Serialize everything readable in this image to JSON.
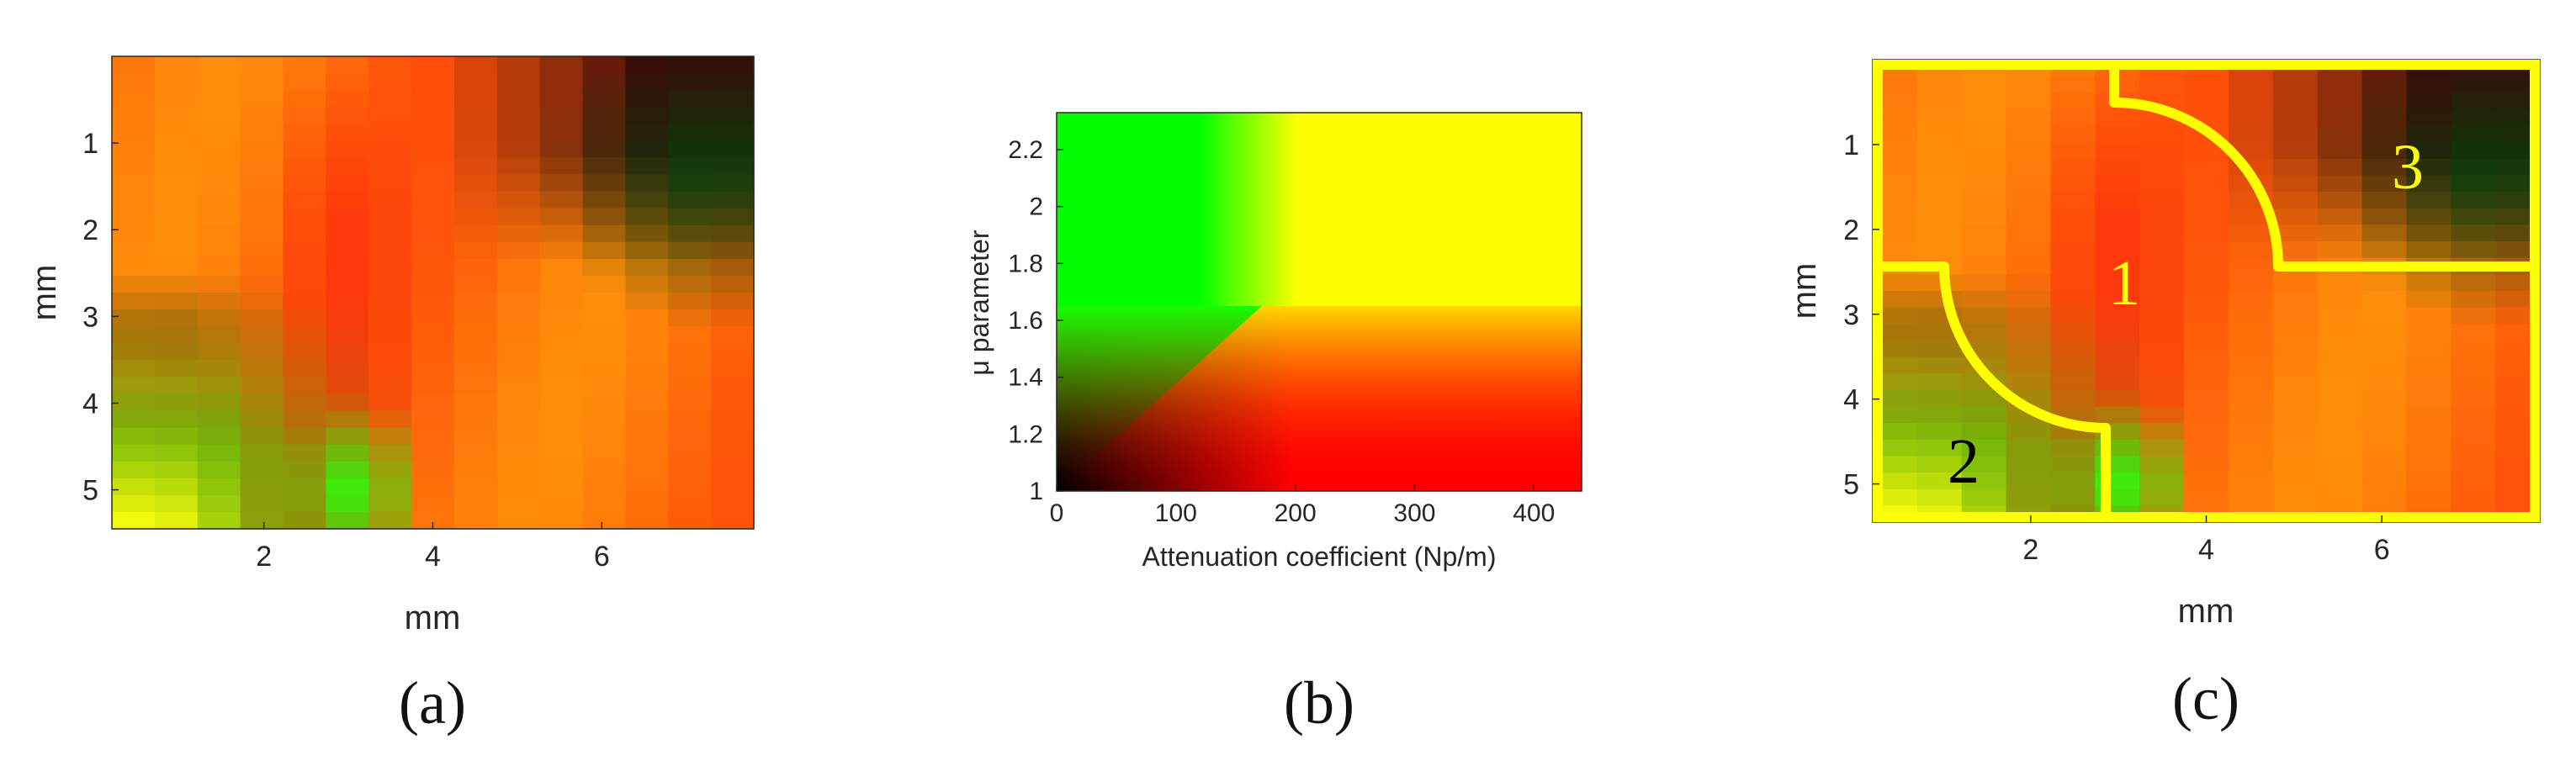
{
  "chart_data": [
    {
      "type": "heatmap",
      "panel_label": "(a)",
      "xlabel": "mm",
      "ylabel": "mm",
      "xlim": [
        0.2,
        7.8
      ],
      "ylim": [
        0,
        5.45
      ],
      "y_reversed": true,
      "xticks": [
        2,
        4,
        6
      ],
      "yticks": [
        1,
        2,
        3,
        4,
        5
      ],
      "colormap": [
        "#000000",
        "#ff0000",
        "#ffff00",
        "#00ff00"
      ]
    },
    {
      "type": "heatmap",
      "panel_label": "(b)",
      "xlabel": "Attenuation coefficient (Np/m)",
      "ylabel": "μ parameter",
      "xlim": [
        0,
        440
      ],
      "ylim": [
        1,
        2.33
      ],
      "xticks": [
        0,
        100,
        200,
        300,
        400
      ],
      "yticks": [
        1,
        1.2,
        1.4,
        1.6,
        1.8,
        2,
        2.2
      ],
      "xticklabels": [
        "0",
        "100",
        "200",
        "300",
        "400"
      ],
      "yticklabels": [
        "1",
        "1.2",
        "1.4",
        "1.6",
        "1.8",
        "2",
        "2.2"
      ],
      "colors": {
        "green": "#00ff00",
        "yellow": "#ffff00",
        "red": "#ff0000",
        "black": "#000000"
      }
    },
    {
      "type": "heatmap",
      "panel_label": "(c)",
      "xlabel": "mm",
      "ylabel": "mm",
      "xlim": [
        0.2,
        7.8
      ],
      "ylim": [
        0,
        5.45
      ],
      "y_reversed": true,
      "xticks": [
        2,
        4,
        6
      ],
      "yticks": [
        1,
        2,
        3,
        4,
        5
      ],
      "regions": [
        {
          "label": "1",
          "color": "#ffff00"
        },
        {
          "label": "2",
          "color": "#000000"
        },
        {
          "label": "3",
          "color": "#ffff00"
        }
      ],
      "boundary_color": "#ffff00"
    }
  ]
}
